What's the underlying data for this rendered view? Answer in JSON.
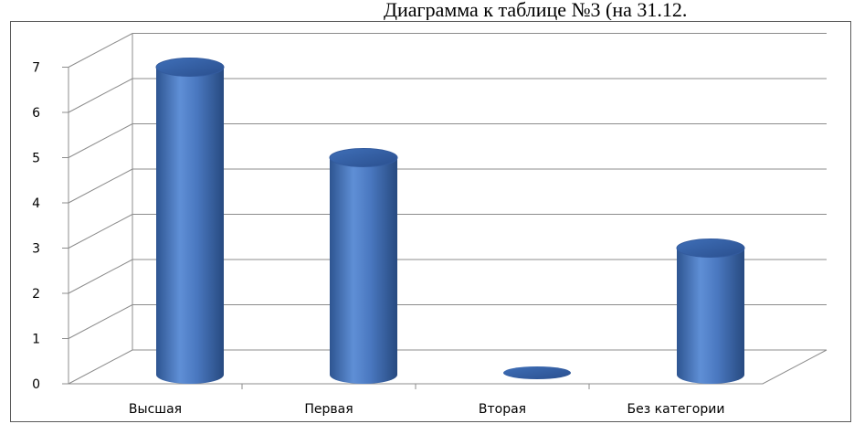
{
  "chart_data": {
    "type": "bar",
    "title": "Диаграмма к таблице №3 (на 31.12.",
    "categories": [
      "Высшая",
      "Первая",
      "Вторая",
      "Без категории"
    ],
    "values": [
      7,
      5,
      0,
      3
    ],
    "yticks": [
      "0",
      "1",
      "2",
      "3",
      "4",
      "5",
      "6",
      "7"
    ],
    "ylim": [
      0,
      7
    ],
    "grid": true,
    "bar_color": "#4a78c0"
  }
}
